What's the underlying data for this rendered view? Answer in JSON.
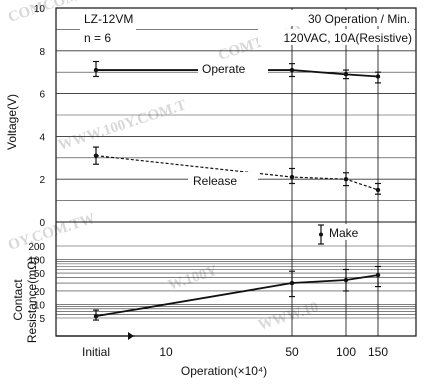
{
  "chart_data": {
    "type": "line",
    "header": {
      "model": "LZ-12VM",
      "sample": "n = 6",
      "rate": "30 Operation / Min.",
      "load": "120VAC, 10A(Resistive)"
    },
    "x": {
      "label": "Operation(×10⁴)",
      "categories": [
        "Initial",
        "10",
        "50",
        "100",
        "150"
      ],
      "values": [
        0,
        10,
        50,
        100,
        150
      ]
    },
    "voltage_panel": {
      "ylabel": "Voltage(V)",
      "ylim": [
        0,
        10
      ],
      "ticks": [
        "0",
        "2",
        "4",
        "6",
        "8",
        "10"
      ],
      "series": [
        {
          "name": "Operate",
          "points": [
            {
              "x": 0,
              "y": 7.1,
              "lo": 6.8,
              "hi": 7.5
            },
            {
              "x": 50,
              "y": 7.1,
              "lo": 6.8,
              "hi": 7.4
            },
            {
              "x": 100,
              "y": 6.9,
              "lo": 6.7,
              "hi": 7.1
            },
            {
              "x": 150,
              "y": 6.8,
              "lo": 6.5,
              "hi": 7.0
            }
          ]
        },
        {
          "name": "Release",
          "points": [
            {
              "x": 0,
              "y": 3.1,
              "lo": 2.7,
              "hi": 3.5
            },
            {
              "x": 50,
              "y": 2.1,
              "lo": 1.8,
              "hi": 2.5
            },
            {
              "x": 100,
              "y": 2.0,
              "lo": 1.7,
              "hi": 2.3
            },
            {
              "x": 150,
              "y": 1.5,
              "lo": 1.3,
              "hi": 1.8
            }
          ]
        }
      ]
    },
    "resistance_panel": {
      "ylabel": "Contact Resistance(mΩ)",
      "scale": "log",
      "ticks": [
        "5",
        "10",
        "20",
        "50",
        "100",
        "200"
      ],
      "series": [
        {
          "name": "Make",
          "points": [
            {
              "x": 0,
              "y": 5.5,
              "lo": 4.5,
              "hi": 7.5
            },
            {
              "x": 50,
              "y": 30,
              "lo": 15,
              "hi": 55
            },
            {
              "x": 100,
              "y": 35,
              "lo": 20,
              "hi": 60
            },
            {
              "x": 150,
              "y": 45,
              "lo": 25,
              "hi": 70
            }
          ]
        }
      ],
      "legend_errorbar": "Make"
    },
    "grid": true
  },
  "watermarks": [
    "COMCOMC",
    "COMTW.CO",
    "WWW.100Y.COM.T",
    "OY.COM.TW",
    "W.100Y",
    "WWW.10"
  ]
}
